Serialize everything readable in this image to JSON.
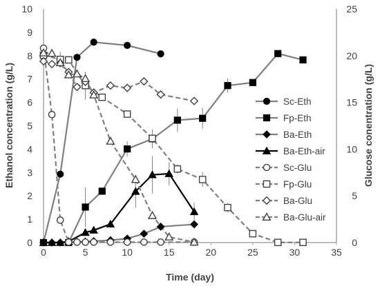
{
  "chart_data": {
    "type": "line",
    "xlabel": "Time (day)",
    "ylabel": "Ethanol concentration (g/L)",
    "y2label": "Glucose conentration (g/L)",
    "xlim": [
      0,
      35
    ],
    "ylim": [
      0,
      10
    ],
    "y2lim": [
      0,
      25
    ],
    "x_ticks": [
      0,
      5,
      10,
      15,
      20,
      25,
      30,
      35
    ],
    "y_ticks": [
      0,
      1,
      2,
      3,
      4,
      5,
      6,
      7,
      8,
      9,
      10
    ],
    "y2_ticks": [
      0,
      5,
      10,
      15,
      20,
      25
    ],
    "grid": false,
    "legend_position": "right",
    "series": [
      {
        "name": "Sc-Eth",
        "axis": "left",
        "marker": "circle",
        "filled": true,
        "line": "solid",
        "color": "#7f7f7f",
        "marker_color": "#000000",
        "points": [
          [
            0,
            0
          ],
          [
            2,
            2.93
          ],
          [
            4,
            7.93
          ],
          [
            6,
            8.58
          ],
          [
            10,
            8.44
          ],
          [
            14,
            8.08
          ]
        ]
      },
      {
        "name": "Fp-Eth",
        "axis": "left",
        "marker": "square",
        "filled": true,
        "line": "solid",
        "color": "#7f7f7f",
        "marker_color": "#000000",
        "points": [
          [
            0,
            0
          ],
          [
            3,
            0
          ],
          [
            5,
            1.52
          ],
          [
            7,
            2.2
          ],
          [
            10,
            4.01
          ],
          [
            13,
            4.44
          ],
          [
            16,
            5.24
          ],
          [
            19,
            5.32
          ],
          [
            22,
            6.72
          ],
          [
            25,
            6.85
          ],
          [
            28,
            8.09
          ],
          [
            31,
            7.82
          ]
        ],
        "error": [
          0,
          0,
          0.85,
          0,
          0.33,
          0.4,
          0.5,
          0.45,
          0.3,
          0,
          0,
          0
        ]
      },
      {
        "name": "Ba-Eth",
        "axis": "left",
        "marker": "diamond",
        "filled": true,
        "line": "solid",
        "color": "#7f7f7f",
        "marker_color": "#000000",
        "points": [
          [
            0,
            0
          ],
          [
            1,
            0
          ],
          [
            2,
            0
          ],
          [
            3,
            0.02
          ],
          [
            4,
            0.03
          ],
          [
            5,
            0.04
          ],
          [
            6,
            0.06
          ],
          [
            8,
            0.1
          ],
          [
            10,
            0.17
          ],
          [
            12,
            0.38
          ],
          [
            14,
            0.68
          ],
          [
            18,
            0.78
          ]
        ]
      },
      {
        "name": "Ba-Eth-air",
        "axis": "left",
        "marker": "triangle",
        "filled": true,
        "line": "solid",
        "color": "#000000",
        "marker_color": "#000000",
        "points": [
          [
            0,
            0
          ],
          [
            1,
            0
          ],
          [
            2,
            0
          ],
          [
            3,
            0.05
          ],
          [
            5,
            0.43
          ],
          [
            6,
            0.53
          ],
          [
            8,
            0.79
          ],
          [
            11,
            2.19
          ],
          [
            13,
            2.9
          ],
          [
            15,
            2.95
          ],
          [
            18,
            1.32
          ]
        ],
        "error": [
          0,
          0,
          0,
          0,
          0.1,
          0.15,
          0.15,
          0.7,
          0.8,
          0.5,
          0.4
        ]
      },
      {
        "name": "Sc-Glu",
        "axis": "right",
        "marker": "circle",
        "filled": false,
        "line": "dashed",
        "color": "#7f7f7f",
        "marker_color": "#404040",
        "points": [
          [
            0,
            20.8
          ],
          [
            1,
            13.7
          ],
          [
            2,
            2.4
          ],
          [
            3,
            0.05
          ],
          [
            4,
            0.05
          ],
          [
            5,
            0.05
          ],
          [
            6,
            0.05
          ],
          [
            8,
            0.05
          ],
          [
            10,
            0.05
          ],
          [
            12,
            0.05
          ],
          [
            14,
            0.05
          ],
          [
            18,
            0.05
          ]
        ]
      },
      {
        "name": "Fp-Glu",
        "axis": "right",
        "marker": "square",
        "filled": false,
        "line": "dashed",
        "color": "#7f7f7f",
        "marker_color": "#404040",
        "points": [
          [
            0,
            20.05
          ],
          [
            2,
            19.6
          ],
          [
            3,
            19.55
          ],
          [
            5,
            16.8
          ],
          [
            7,
            15.55
          ],
          [
            10,
            13.75
          ],
          [
            13,
            11.15
          ],
          [
            16,
            7.88
          ],
          [
            19,
            6.75
          ],
          [
            22,
            3.75
          ],
          [
            25,
            0.95
          ],
          [
            28,
            0.02
          ],
          [
            31,
            0.02
          ]
        ],
        "error": [
          0,
          0.8,
          0,
          1.5,
          0,
          0,
          0.5,
          0.5,
          0.8,
          0.5,
          0,
          0,
          0
        ]
      },
      {
        "name": "Ba-Glu",
        "axis": "right",
        "marker": "diamond",
        "filled": false,
        "line": "dashed",
        "color": "#7f7f7f",
        "marker_color": "#404040",
        "points": [
          [
            0,
            19.4
          ],
          [
            1,
            19.1
          ],
          [
            2,
            19.2
          ],
          [
            3,
            18.25
          ],
          [
            4,
            16.65
          ],
          [
            5,
            17.2
          ],
          [
            6,
            16.05
          ],
          [
            8,
            16.8
          ],
          [
            10,
            16.55
          ],
          [
            12,
            17.25
          ],
          [
            14,
            15.85
          ],
          [
            18,
            15.15
          ]
        ]
      },
      {
        "name": "Ba-Glu-air",
        "axis": "right",
        "marker": "triangle",
        "filled": false,
        "line": "dashed",
        "color": "#7f7f7f",
        "marker_color": "#404040",
        "points": [
          [
            0,
            20.3
          ],
          [
            1,
            20.25
          ],
          [
            2,
            19.25
          ],
          [
            3,
            17.95
          ],
          [
            4,
            18.05
          ],
          [
            5,
            17.55
          ],
          [
            6,
            15.8
          ],
          [
            8,
            10.85
          ],
          [
            11,
            6.75
          ],
          [
            13,
            2.9
          ],
          [
            15,
            0.6
          ],
          [
            18,
            0.05
          ]
        ]
      }
    ]
  }
}
